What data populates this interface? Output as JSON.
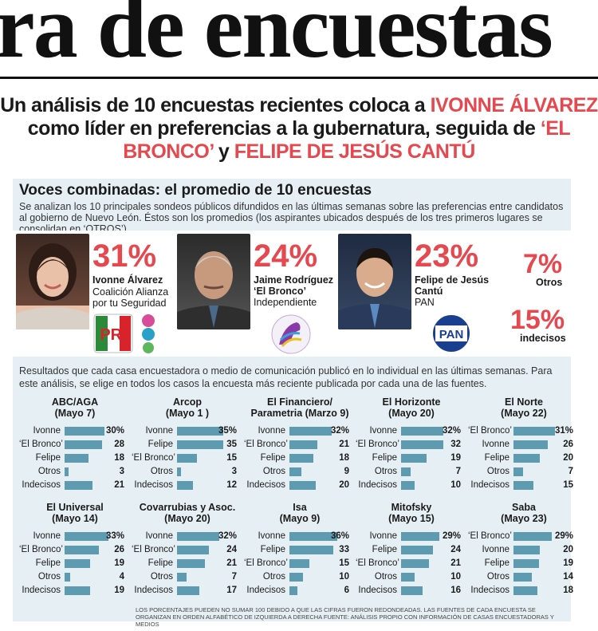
{
  "headline": "ra de encuestas",
  "subtitle": {
    "p1": "Un análisis de 10 encuestas recientes coloca a ",
    "r1": "IVONNE ÁLVAREZ",
    "p2": " como líder en preferencias a la gubernatura, seguida de ",
    "r2": "‘EL BRONCO’",
    "p3": " y ",
    "r3": "FELIPE DE JESÚS CANTÚ"
  },
  "voces": {
    "title": "Voces combinadas: el promedio de 10 encuestas",
    "desc": "Se analizan los 10 principales  sondeos públicos difundidos en las últimas semanas sobre las preferencias entre candidatos al gobierno de Nuevo León. Éstos son los promedios (los aspirantes ubicados después de los tres primeros lugares se consolidan en ‘OTROS’)."
  },
  "candidates": [
    {
      "pct": "31%",
      "name1": "Ivonne Álvarez",
      "party1": "Coalición Alianza",
      "party2": "por tu Seguridad",
      "logo": "PRI"
    },
    {
      "pct": "24%",
      "name1": "Jaime Rodríguez",
      "name2": "‘El Bronco’",
      "party1": "Independiente",
      "logo": "horse"
    },
    {
      "pct": "23%",
      "name1": "Felipe de Jesús",
      "name2": "Cantú",
      "party1": "PAN",
      "logo": "PAN"
    }
  ],
  "others": {
    "pct": "7%",
    "label": "Otros"
  },
  "undecided": {
    "pct": "15%",
    "label": "indecisos"
  },
  "results_desc": "Resultados que cada casa encuestadora o medio de comunicación publicó en lo individual en las últimas semanas. Para este análisis, se elige en todos los casos la encuesta más reciente publicada por cada una de las fuentes.",
  "chart_data": [
    {
      "type": "bar",
      "title": "ABC/AGA",
      "subtitle": "(Mayo 7)",
      "categories": [
        "Ivonne",
        "‘El Bronco’",
        "Felipe",
        "Otros",
        "Indecisos"
      ],
      "values": [
        30,
        28,
        18,
        3,
        21
      ],
      "labels": [
        "30%",
        "28",
        "18",
        "3",
        "21"
      ]
    },
    {
      "type": "bar",
      "title": "Arcop",
      "subtitle": "(Mayo 1 )",
      "categories": [
        "Ivonne",
        "Felipe",
        "‘El Bronco’",
        "Otros",
        "Indecisos"
      ],
      "values": [
        35,
        35,
        15,
        3,
        12
      ],
      "labels": [
        "35%",
        "35",
        "15",
        "3",
        "12"
      ]
    },
    {
      "type": "bar",
      "title": "El Financiero/",
      "subtitle": "Parametria (Marzo 9)",
      "categories": [
        "Ivonne",
        "‘El Bronco’",
        "Felipe",
        "Otros",
        "Indecisos"
      ],
      "values": [
        32,
        21,
        18,
        9,
        20
      ],
      "labels": [
        "32%",
        "21",
        "18",
        "9",
        "20"
      ]
    },
    {
      "type": "bar",
      "title": "El Horizonte",
      "subtitle": "(Mayo 20)",
      "categories": [
        "Ivonne",
        "‘El Bronco’",
        "Felipe",
        "Otros",
        "Indecisos"
      ],
      "values": [
        32,
        32,
        19,
        7,
        10
      ],
      "labels": [
        "32%",
        "32",
        "19",
        "7",
        "10"
      ]
    },
    {
      "type": "bar",
      "title": "El Norte",
      "subtitle": "(Mayo 22)",
      "categories": [
        "‘El Bronco’",
        "Ivonne",
        "Felipe",
        "Otros",
        "Indecisos"
      ],
      "values": [
        31,
        26,
        20,
        7,
        15
      ],
      "labels": [
        "31%",
        "26",
        "20",
        "7",
        "15"
      ]
    },
    {
      "type": "bar",
      "title": "El Universal",
      "subtitle": "(Mayo 14)",
      "categories": [
        "Ivonne",
        "‘El Bronco’",
        "Felipe",
        "Otros",
        "Indecisos"
      ],
      "values": [
        33,
        26,
        19,
        4,
        19
      ],
      "labels": [
        "33%",
        "26",
        "19",
        "4",
        "19"
      ]
    },
    {
      "type": "bar",
      "title": "Covarrubias y Asoc.",
      "subtitle": "(Mayo 20)",
      "categories": [
        "Ivonne",
        "‘El Bronco’",
        "Felipe",
        "Otros",
        "Indecisos"
      ],
      "values": [
        32,
        24,
        21,
        7,
        17
      ],
      "labels": [
        "32%",
        "24",
        "21",
        "7",
        "17"
      ]
    },
    {
      "type": "bar",
      "title": "Isa",
      "subtitle": "(Mayo 9)",
      "categories": [
        "Ivonne",
        "Felipe",
        "‘El Bronco’",
        "Otros",
        "Indecisos"
      ],
      "values": [
        36,
        33,
        15,
        10,
        6
      ],
      "labels": [
        "36%",
        "33",
        "15",
        "10",
        "6"
      ]
    },
    {
      "type": "bar",
      "title": "Mitofsky",
      "subtitle": "(Mayo 15)",
      "categories": [
        "Ivonne",
        "Felipe",
        "‘El Bronco’",
        "Otros",
        "Indecisos"
      ],
      "values": [
        29,
        24,
        21,
        10,
        16
      ],
      "labels": [
        "29%",
        "24",
        "21",
        "10",
        "16"
      ]
    },
    {
      "type": "bar",
      "title": "Saba",
      "subtitle": "(Mayo 23)",
      "categories": [
        "‘El Bronco’",
        "Ivonne",
        "Felipe",
        "Otros",
        "Indecisos"
      ],
      "values": [
        29,
        20,
        19,
        14,
        18
      ],
      "labels": [
        "29%",
        "20",
        "19",
        "14",
        "18"
      ]
    }
  ],
  "footnote": "Los porcentajes pueden no sumar 100 debido a que las cifras fueron redondeadas. Las fuentes de cada encuesta se organizan en orden alfabético de izquierda a derecha Fuente: Análisis propio con información de casas encuestadoras y medios",
  "colors": {
    "accent": "#e5484f",
    "bar": "#5f9bb0",
    "panel": "#e6f0f4"
  }
}
